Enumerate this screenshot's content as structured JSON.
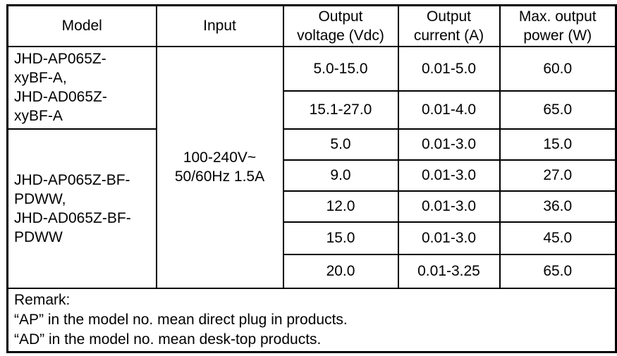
{
  "table": {
    "headers": {
      "model": "Model",
      "input": "Input",
      "output_voltage": "Output\nvoltage (Vdc)",
      "output_current": "Output\ncurrent (A)",
      "max_output_power": "Max. output\npower (W)"
    },
    "input_value": "100-240V~\n50/60Hz 1.5A",
    "model_groups": [
      {
        "name": "JHD-AP065Z-\nxyBF-A,\nJHD-AD065Z-\nxyBF-A"
      },
      {
        "name": "JHD-AP065Z-BF-\nPDWW,\nJHD-AD065Z-BF-\nPDWW"
      }
    ],
    "rows": [
      {
        "voltage": "5.0-15.0",
        "current": "0.01-5.0",
        "power": "60.0"
      },
      {
        "voltage": "15.1-27.0",
        "current": "0.01-4.0",
        "power": "65.0"
      },
      {
        "voltage": "5.0",
        "current": "0.01-3.0",
        "power": "15.0"
      },
      {
        "voltage": "9.0",
        "current": "0.01-3.0",
        "power": "27.0"
      },
      {
        "voltage": "12.0",
        "current": "0.01-3.0",
        "power": "36.0"
      },
      {
        "voltage": "15.0",
        "current": "0.01-3.0",
        "power": "45.0"
      },
      {
        "voltage": "20.0",
        "current": "0.01-3.25",
        "power": "65.0"
      }
    ],
    "remark": {
      "title": "Remark:",
      "line_ap": "“AP” in the model no. mean direct plug in products.",
      "line_ad": "“AD” in the model no. mean desk-top products."
    }
  },
  "colors": {
    "border": "#000000",
    "text": "#000000",
    "background": "#ffffff"
  }
}
